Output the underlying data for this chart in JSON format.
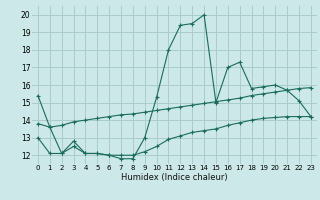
{
  "title": "",
  "xlabel": "Humidex (Indice chaleur)",
  "bg_color": "#cce8e8",
  "grid_color": "#aacccc",
  "line_color": "#1a6b5a",
  "xlim": [
    -0.5,
    23.5
  ],
  "ylim": [
    11.5,
    20.5
  ],
  "xticks": [
    0,
    1,
    2,
    3,
    4,
    5,
    6,
    7,
    8,
    9,
    10,
    11,
    12,
    13,
    14,
    15,
    16,
    17,
    18,
    19,
    20,
    21,
    22,
    23
  ],
  "yticks": [
    12,
    13,
    14,
    15,
    16,
    17,
    18,
    19,
    20
  ],
  "line1_x": [
    0,
    1,
    2,
    3,
    4,
    5,
    6,
    7,
    8,
    9,
    10,
    11,
    12,
    13,
    14,
    15,
    16,
    17,
    18,
    19,
    20,
    21,
    22,
    23
  ],
  "line1_y": [
    15.4,
    13.6,
    12.1,
    12.8,
    12.1,
    12.1,
    12.0,
    11.8,
    11.8,
    13.0,
    15.3,
    18.0,
    19.4,
    19.5,
    20.0,
    15.0,
    17.0,
    17.3,
    15.8,
    15.9,
    16.0,
    15.7,
    15.1,
    14.2
  ],
  "line2_x": [
    0,
    1,
    2,
    3,
    4,
    5,
    6,
    7,
    8,
    9,
    10,
    11,
    12,
    13,
    14,
    15,
    16,
    17,
    18,
    19,
    20,
    21,
    22,
    23
  ],
  "line2_y": [
    13.8,
    13.6,
    13.7,
    13.9,
    14.0,
    14.1,
    14.2,
    14.3,
    14.35,
    14.45,
    14.55,
    14.65,
    14.75,
    14.85,
    14.95,
    15.05,
    15.15,
    15.25,
    15.4,
    15.5,
    15.6,
    15.7,
    15.8,
    15.85
  ],
  "line3_x": [
    0,
    1,
    2,
    3,
    4,
    5,
    6,
    7,
    8,
    9,
    10,
    11,
    12,
    13,
    14,
    15,
    16,
    17,
    18,
    19,
    20,
    21,
    22,
    23
  ],
  "line3_y": [
    13.0,
    12.1,
    12.1,
    12.5,
    12.1,
    12.1,
    12.0,
    12.0,
    12.0,
    12.2,
    12.5,
    12.9,
    13.1,
    13.3,
    13.4,
    13.5,
    13.7,
    13.85,
    14.0,
    14.1,
    14.15,
    14.2,
    14.2,
    14.2
  ]
}
